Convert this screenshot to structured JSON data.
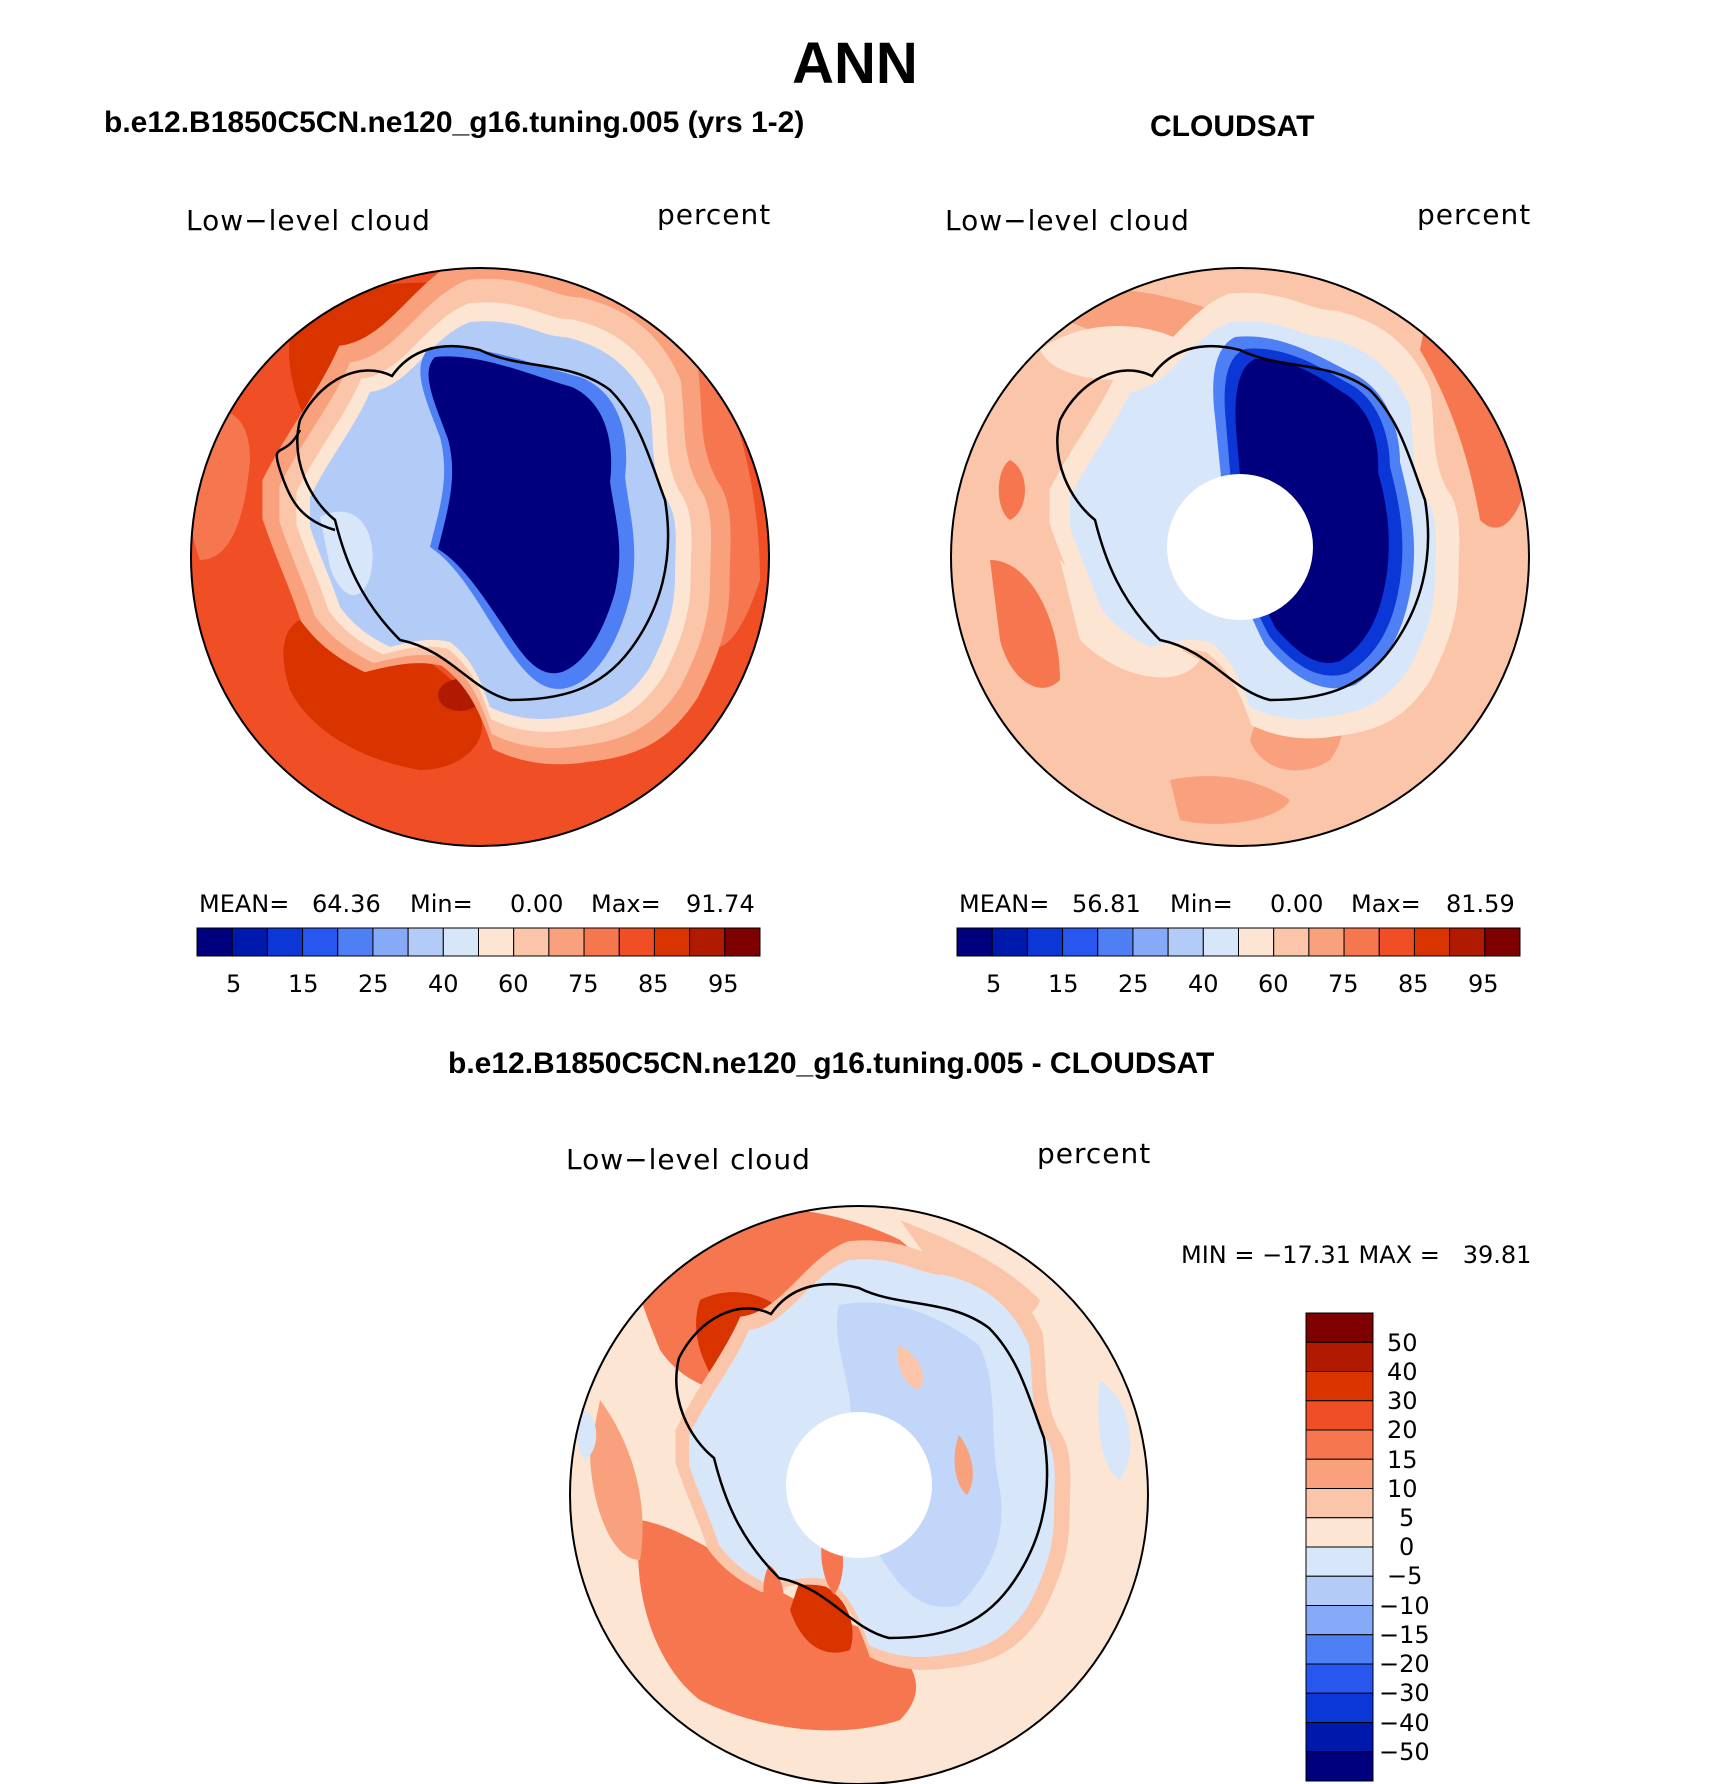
{
  "title": "ANN",
  "panels": [
    {
      "subtitle": "b.e12.B1850C5CN.ne120_g16.tuning.005 (yrs 1-2)",
      "left_label": "Low−level cloud",
      "right_label": "percent",
      "stats": {
        "mean_label": "MEAN=",
        "mean": "64.36",
        "min_label": "Min=",
        "min": "0.00",
        "max_label": "Max=",
        "max": "91.74"
      }
    },
    {
      "subtitle": "CLOUDSAT",
      "left_label": "Low−level cloud",
      "right_label": "percent",
      "stats": {
        "mean_label": "MEAN=",
        "mean": "56.81",
        "min_label": "Min=",
        "min": "0.00",
        "max_label": "Max=",
        "max": "81.59"
      }
    },
    {
      "subtitle": "b.e12.B1850C5CN.ne120_g16.tuning.005 - CLOUDSAT",
      "left_label": "Low−level cloud",
      "right_label": "percent",
      "stats_text": "MIN = −17.31 MAX =   39.81"
    }
  ],
  "colorbar_abs": {
    "colors": [
      "#00007f",
      "#0019ad",
      "#0a37d6",
      "#2857f0",
      "#4f7ff5",
      "#86aaf7",
      "#b3cbf7",
      "#d8e6fa",
      "#fde5d4",
      "#fbc5a9",
      "#f9a07c",
      "#f6774f",
      "#f04f25",
      "#d93300",
      "#b01a00",
      "#7f0000"
    ],
    "tick_labels": [
      "5",
      "15",
      "25",
      "40",
      "60",
      "75",
      "85",
      "95"
    ]
  },
  "colorbar_diff": {
    "colors": [
      "#00007f",
      "#0019ad",
      "#0a37d6",
      "#2857f0",
      "#4f7ff5",
      "#86aaf7",
      "#b3cbf7",
      "#d8e6fa",
      "#fde5d4",
      "#fbc5a9",
      "#f9a07c",
      "#f6774f",
      "#f04f25",
      "#d93300",
      "#b01a00",
      "#7f0000"
    ],
    "tick_labels": [
      "50",
      "40",
      "30",
      "20",
      "15",
      "10",
      "5",
      "0",
      "−5",
      "−10",
      "−15",
      "−20",
      "−30",
      "−40",
      "−50"
    ]
  }
}
